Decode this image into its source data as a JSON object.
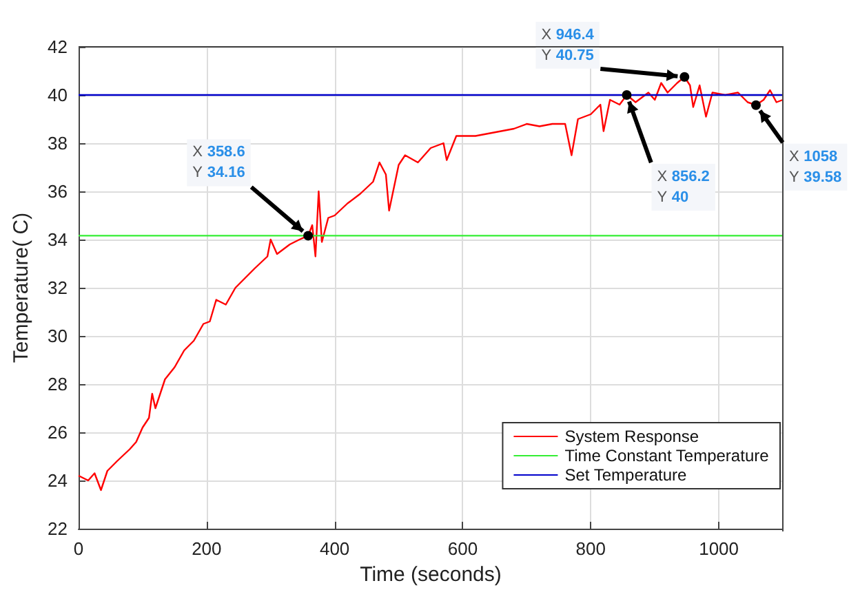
{
  "chart_data": {
    "type": "line",
    "xlabel": "Time (seconds)",
    "ylabel": "Temperature( C)",
    "xlim": [
      0,
      1100
    ],
    "xticks": [
      0,
      200,
      400,
      600,
      800,
      1000
    ],
    "ylim": [
      22,
      42
    ],
    "yticks": [
      22,
      24,
      26,
      28,
      30,
      32,
      34,
      36,
      38,
      40,
      42
    ],
    "grid": true,
    "legend": "bottom right",
    "marker": "none",
    "line_style": "solid",
    "series": [
      {
        "name": "System Response",
        "color": "#ff0000",
        "x": [
          0,
          15,
          25,
          35,
          45,
          60,
          80,
          90,
          100,
          110,
          115,
          120,
          135,
          150,
          165,
          180,
          195,
          205,
          215,
          230,
          245,
          260,
          275,
          295,
          300,
          310,
          330,
          345,
          358.6,
          365,
          370,
          375,
          380,
          390,
          400,
          420,
          440,
          460,
          470,
          480,
          485,
          500,
          510,
          530,
          550,
          570,
          575,
          590,
          620,
          640,
          660,
          680,
          700,
          720,
          740,
          760,
          770,
          780,
          800,
          815,
          820,
          830,
          845,
          856.2,
          870,
          890,
          900,
          910,
          920,
          935,
          946.4,
          955,
          960,
          970,
          980,
          990,
          1010,
          1030,
          1045,
          1058,
          1070,
          1080,
          1090,
          1100
        ],
        "values": [
          24.2,
          24.0,
          24.3,
          23.6,
          24.4,
          24.8,
          25.3,
          25.6,
          26.2,
          26.6,
          27.6,
          27.0,
          28.2,
          28.7,
          29.4,
          29.8,
          30.5,
          30.6,
          31.5,
          31.3,
          32.0,
          32.4,
          32.8,
          33.3,
          34.0,
          33.4,
          33.8,
          34.0,
          34.16,
          34.6,
          33.3,
          36.0,
          33.9,
          34.9,
          35.0,
          35.5,
          35.9,
          36.4,
          37.2,
          36.7,
          35.2,
          37.1,
          37.5,
          37.2,
          37.8,
          38.0,
          37.3,
          38.3,
          38.3,
          38.4,
          38.5,
          38.6,
          38.8,
          38.7,
          38.8,
          38.8,
          37.5,
          39.0,
          39.2,
          39.6,
          38.5,
          39.8,
          39.6,
          40,
          39.7,
          40.1,
          39.8,
          40.5,
          40.1,
          40.5,
          40.75,
          40.4,
          39.5,
          40.4,
          39.1,
          40.1,
          40.0,
          40.1,
          39.7,
          39.58,
          39.8,
          40.2,
          39.7,
          39.8
        ]
      },
      {
        "name": "Time Constant Temperature",
        "color": "#33ee33",
        "x": [
          0,
          1100
        ],
        "values": [
          34.16,
          34.16
        ]
      },
      {
        "name": "Set Temperature",
        "color": "#0000cc",
        "x": [
          0,
          1100
        ],
        "values": [
          40,
          40
        ]
      }
    ],
    "annotations": [
      {
        "text": "X 358.6\nY 34.16",
        "x": 358.6,
        "y": 34.16
      },
      {
        "text": "X 946.4\nY 40.75",
        "x": 946.4,
        "y": 40.75
      },
      {
        "text": "X 856.2\nY 40",
        "x": 856.2,
        "y": 40
      },
      {
        "text": "X 1058\nY 39.58",
        "x": 1058,
        "y": 39.58
      }
    ]
  }
}
